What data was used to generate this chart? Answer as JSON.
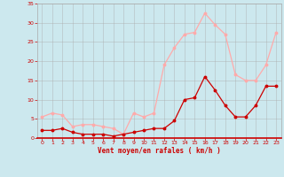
{
  "x": [
    0,
    1,
    2,
    3,
    4,
    5,
    6,
    7,
    8,
    9,
    10,
    11,
    12,
    13,
    14,
    15,
    16,
    17,
    18,
    19,
    20,
    21,
    22,
    23
  ],
  "y_moyen": [
    2,
    2,
    2.5,
    1.5,
    1,
    1,
    1,
    0.5,
    1,
    1.5,
    2,
    2.5,
    2.5,
    4.5,
    10,
    10.5,
    16,
    12.5,
    8.5,
    5.5,
    5.5,
    8.5,
    13.5,
    13.5
  ],
  "y_rafales": [
    5.5,
    6.5,
    6,
    3,
    3.5,
    3.5,
    3,
    2.5,
    1,
    6.5,
    5.5,
    6.5,
    19,
    23.5,
    27,
    27.5,
    32.5,
    29.5,
    27,
    16.5,
    15,
    15,
    19,
    27.5
  ],
  "color_moyen": "#cc0000",
  "color_rafales": "#ffaaaa",
  "bg_color": "#cce8ee",
  "grid_color": "#aaaaaa",
  "xlabel": "Vent moyen/en rafales ( km/h )",
  "xlabel_color": "#cc0000",
  "tick_color": "#cc0000",
  "ylim": [
    0,
    35
  ],
  "xlim_min": -0.5,
  "xlim_max": 23.5,
  "yticks": [
    0,
    5,
    10,
    15,
    20,
    25,
    30,
    35
  ],
  "xticks": [
    0,
    1,
    2,
    3,
    4,
    5,
    6,
    7,
    8,
    9,
    10,
    11,
    12,
    13,
    14,
    15,
    16,
    17,
    18,
    19,
    20,
    21,
    22,
    23
  ]
}
